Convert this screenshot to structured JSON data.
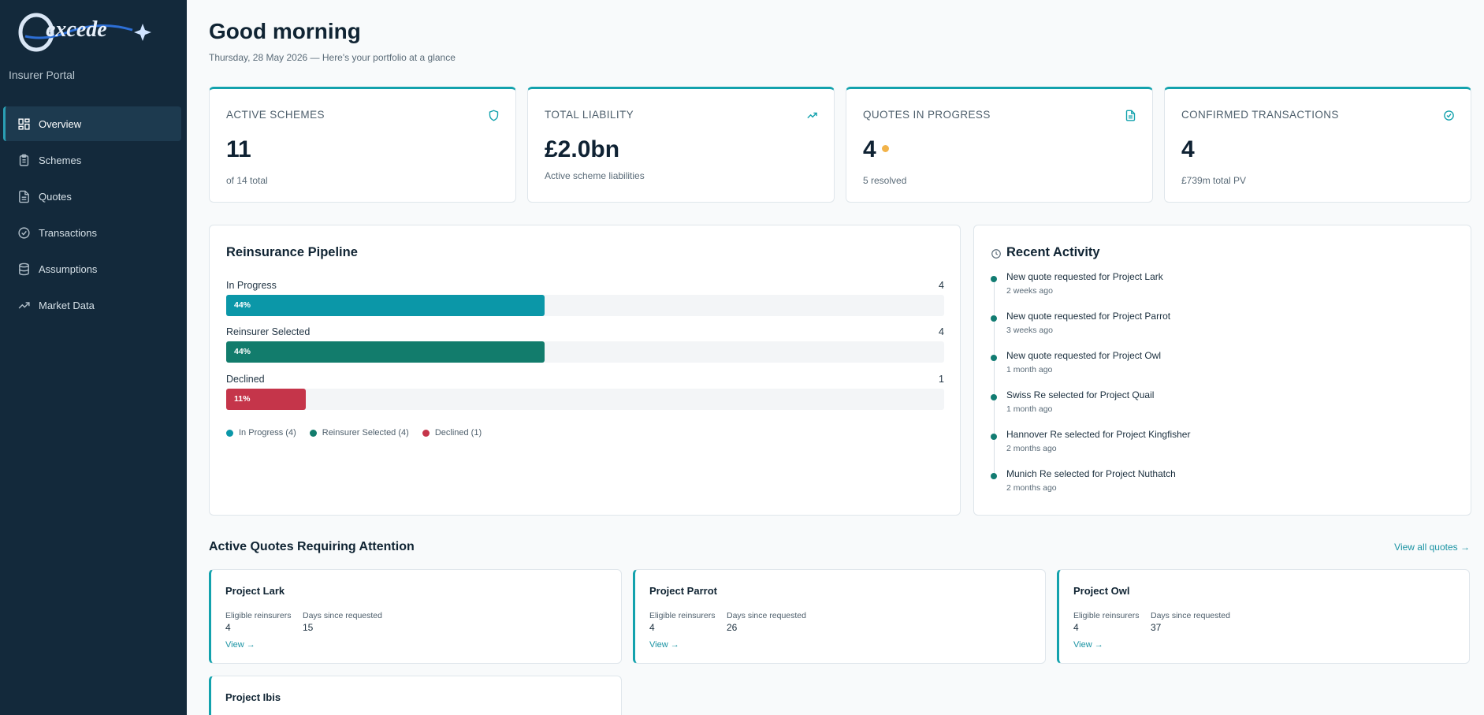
{
  "brand": {
    "logo_text": "excede",
    "portal": "Insurer Portal"
  },
  "nav": [
    {
      "label": "Overview",
      "icon": "dashboard-icon",
      "active": true
    },
    {
      "label": "Schemes",
      "icon": "clipboard-icon"
    },
    {
      "label": "Quotes",
      "icon": "document-icon"
    },
    {
      "label": "Transactions",
      "icon": "check-circle-icon"
    },
    {
      "label": "Assumptions",
      "icon": "database-icon"
    },
    {
      "label": "Market Data",
      "icon": "trending-up-icon"
    }
  ],
  "header": {
    "greeting": "Good morning",
    "subtitle": "Thursday, 28 May 2026 — Here's your portfolio at a glance"
  },
  "stats": [
    {
      "title": "ACTIVE SCHEMES",
      "value": "11",
      "sub": "of 14 total",
      "icon": "shield-icon"
    },
    {
      "title": "TOTAL LIABILITY",
      "value": "£2.0bn",
      "sub": "Active scheme liabilities",
      "icon": "trending-up-icon"
    },
    {
      "title": "QUOTES IN PROGRESS",
      "value": "4",
      "sub": "5 resolved",
      "icon": "document-icon"
    },
    {
      "title": "CONFIRMED TRANSACTIONS",
      "value": "4",
      "sub": "£739m total PV",
      "icon": "check-circle-icon"
    }
  ],
  "pipeline": {
    "title": "Reinsurance Pipeline",
    "rows": [
      {
        "label": "In Progress",
        "count": "4",
        "percent_label": "44%",
        "fraction": 0.444,
        "color": "#0b97a8"
      },
      {
        "label": "Reinsurer Selected",
        "count": "4",
        "percent_label": "44%",
        "fraction": 0.444,
        "color": "#127c6c"
      },
      {
        "label": "Declined",
        "count": "1",
        "percent_label": "11%",
        "fraction": 0.111,
        "color": "#c5354a"
      }
    ],
    "legend": [
      {
        "label": "In Progress (4)",
        "color": "#0b97a8"
      },
      {
        "label": "Reinsurer Selected (4)",
        "color": "#127c6c"
      },
      {
        "label": "Declined (1)",
        "color": "#c5354a"
      }
    ]
  },
  "activity": {
    "title": "Recent Activity",
    "items": [
      {
        "text": "New quote requested for Project Lark",
        "time": "2 weeks ago"
      },
      {
        "text": "New quote requested for Project Parrot",
        "time": "3 weeks ago"
      },
      {
        "text": "New quote requested for Project Owl",
        "time": "1 month ago"
      },
      {
        "text": "Swiss Re selected for Project Quail",
        "time": "1 month ago"
      },
      {
        "text": "Hannover Re selected for Project Kingfisher",
        "time": "2 months ago"
      },
      {
        "text": "Munich Re selected for Project Nuthatch",
        "time": "2 months ago"
      }
    ]
  },
  "quotes_section": {
    "title": "Active Quotes Requiring Attention",
    "view_all": "View all quotes →",
    "eligible_label": "Eligible reinsurers",
    "days_label": "Days since requested",
    "view_label": "View →",
    "cards": [
      {
        "name": "Project Lark",
        "eligible": "4",
        "days": "15"
      },
      {
        "name": "Project Parrot",
        "eligible": "4",
        "days": "26"
      },
      {
        "name": "Project Owl",
        "eligible": "4",
        "days": "37"
      },
      {
        "name": "Project Ibis",
        "eligible": "",
        "days": ""
      }
    ]
  }
}
